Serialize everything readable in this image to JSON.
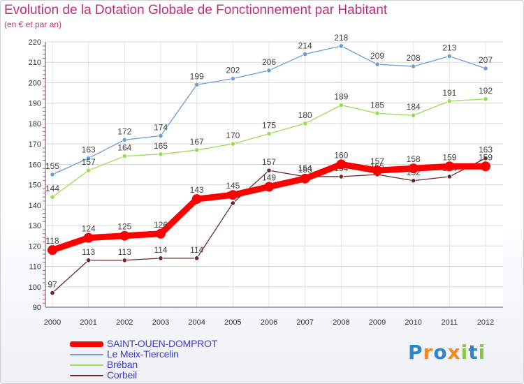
{
  "chart_data": {
    "type": "line",
    "title": "Evolution de la Dotation Globale de Fonctionnement par Habitant",
    "subtitle": "(en € et par an)",
    "categories": [
      "2000",
      "2001",
      "2002",
      "2003",
      "2004",
      "2005",
      "2006",
      "2007",
      "2008",
      "2009",
      "2010",
      "2011",
      "2012"
    ],
    "ylim": [
      90,
      220
    ],
    "yticks": [
      90,
      100,
      110,
      120,
      130,
      140,
      150,
      160,
      170,
      180,
      190,
      200,
      210,
      220
    ],
    "grid": true,
    "series": [
      {
        "name": "SAINT-OUEN-DOMPROT",
        "color": "#ff0000",
        "values": [
          118,
          124,
          125,
          126,
          143,
          145,
          149,
          153,
          160,
          157,
          158,
          159,
          159
        ]
      },
      {
        "name": "Le Meix-Tiercelin",
        "color": "#6a9fd4",
        "values": [
          155,
          163,
          172,
          174,
          199,
          202,
          206,
          214,
          218,
          209,
          208,
          213,
          207
        ]
      },
      {
        "name": "Bréban",
        "color": "#99dd55",
        "values": [
          144,
          157,
          164,
          165,
          167,
          170,
          175,
          180,
          189,
          185,
          184,
          191,
          192
        ]
      },
      {
        "name": "Corbeil",
        "color": "#6b2a2a",
        "values": [
          97,
          113,
          113,
          114,
          114,
          141,
          157,
          154,
          154,
          155,
          152,
          154,
          163
        ]
      }
    ]
  },
  "logo": {
    "letters": [
      "P",
      "r",
      "o",
      "x",
      "i",
      "t",
      "i"
    ],
    "colors": [
      "#2b87c8",
      "#ef8b1e",
      "#2b87c8",
      "#ef8b1e",
      "#8dc63f",
      "#2b87c8",
      "#8dc63f"
    ]
  }
}
